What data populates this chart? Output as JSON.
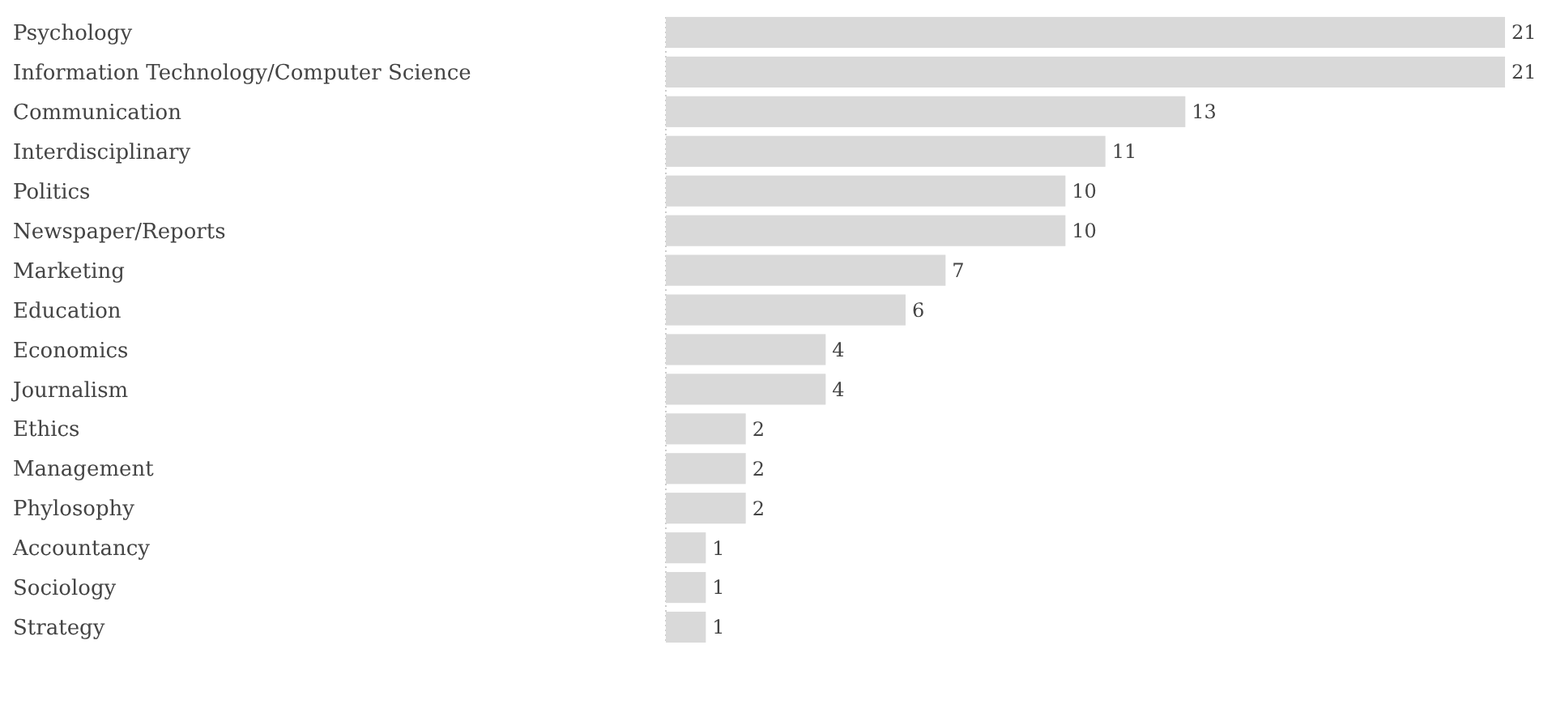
{
  "chart_data": {
    "type": "bar",
    "orientation": "horizontal",
    "data_labels": true,
    "color": "#d9d9d9",
    "categories": [
      "Psychology",
      "Information Technology/Computer Science",
      "Communication",
      "Interdisciplinary",
      "Politics",
      "Newspaper/Reports",
      "Marketing",
      "Education",
      "Economics",
      "Journalism",
      "Ethics",
      "Management",
      "Phylosophy",
      "Accountancy",
      "Sociology",
      "Strategy"
    ],
    "values": [
      21,
      21,
      13,
      11,
      10,
      10,
      7,
      6,
      4,
      4,
      2,
      2,
      2,
      1,
      1,
      1
    ]
  }
}
